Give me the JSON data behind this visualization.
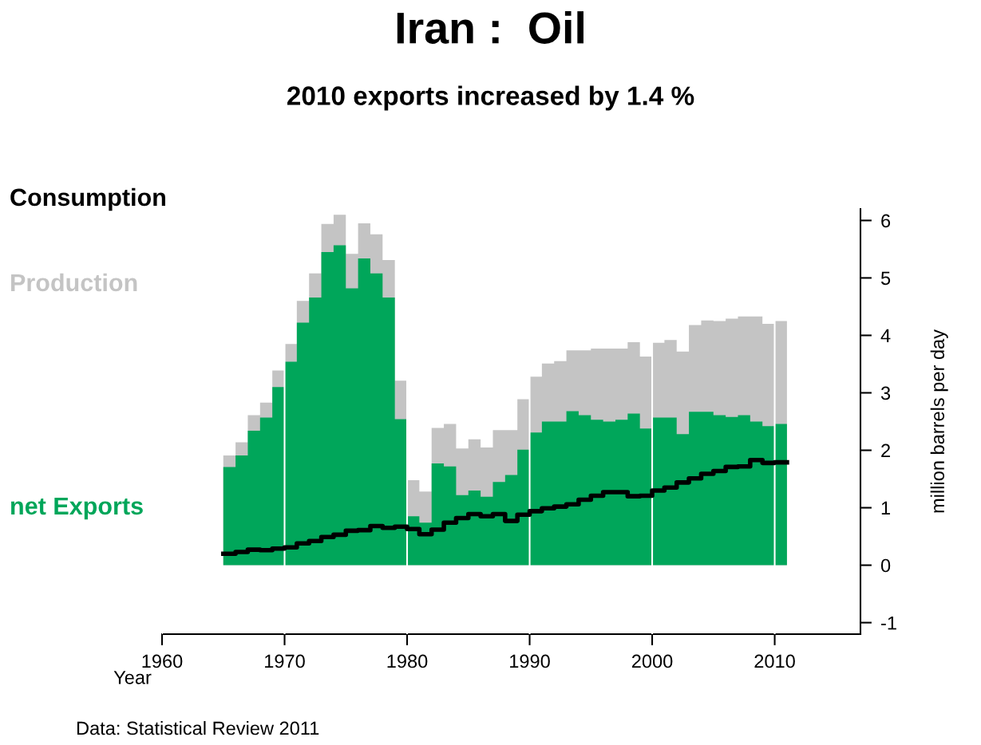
{
  "chart_data": {
    "type": "area",
    "title": "Iran :  Oil",
    "subtitle": "2010 exports increased by 1.4 %",
    "xlabel": "Year",
    "ylabel": "million barrels per day",
    "annotations": [
      "Data: Statistical Review 2011"
    ],
    "x": [
      1965,
      1966,
      1967,
      1968,
      1969,
      1970,
      1971,
      1972,
      1973,
      1974,
      1975,
      1976,
      1977,
      1978,
      1979,
      1980,
      1981,
      1982,
      1983,
      1984,
      1985,
      1986,
      1987,
      1988,
      1989,
      1990,
      1991,
      1992,
      1993,
      1994,
      1995,
      1996,
      1997,
      1998,
      1999,
      2000,
      2001,
      2002,
      2003,
      2004,
      2005,
      2006,
      2007,
      2008,
      2009,
      2010,
      2011
    ],
    "series": [
      {
        "name": "Production",
        "color": "#c4c4c4",
        "values": [
          1.91,
          2.14,
          2.61,
          2.83,
          3.39,
          3.85,
          4.6,
          5.08,
          5.94,
          6.1,
          5.42,
          5.95,
          5.76,
          5.31,
          3.21,
          1.48,
          1.28,
          2.39,
          2.46,
          2.03,
          2.19,
          2.05,
          2.35,
          2.35,
          2.89,
          3.28,
          3.51,
          3.55,
          3.74,
          3.74,
          3.77,
          3.77,
          3.77,
          3.88,
          3.63,
          3.87,
          3.92,
          3.72,
          4.18,
          4.26,
          4.25,
          4.29,
          4.33,
          4.33,
          4.2,
          4.25,
          4.25
        ]
      },
      {
        "name": "net Exports",
        "color": "#00a65a",
        "values": [
          1.71,
          1.91,
          2.34,
          2.57,
          3.1,
          3.54,
          4.22,
          4.66,
          5.45,
          5.57,
          4.82,
          5.34,
          5.08,
          4.66,
          2.54,
          0.85,
          0.74,
          1.77,
          1.72,
          1.22,
          1.3,
          1.19,
          1.45,
          1.57,
          2.01,
          2.31,
          2.5,
          2.5,
          2.68,
          2.61,
          2.53,
          2.5,
          2.53,
          2.64,
          2.38,
          2.57,
          2.57,
          2.28,
          2.67,
          2.67,
          2.61,
          2.58,
          2.61,
          2.5,
          2.42,
          2.46,
          2.46
        ]
      },
      {
        "name": "Consumption",
        "type": "step",
        "color": "#000000",
        "values": [
          0.2,
          0.23,
          0.27,
          0.26,
          0.29,
          0.31,
          0.38,
          0.42,
          0.49,
          0.53,
          0.6,
          0.61,
          0.68,
          0.65,
          0.67,
          0.63,
          0.54,
          0.62,
          0.74,
          0.82,
          0.89,
          0.85,
          0.89,
          0.77,
          0.88,
          0.94,
          0.99,
          1.02,
          1.06,
          1.14,
          1.21,
          1.27,
          1.27,
          1.2,
          1.21,
          1.3,
          1.35,
          1.44,
          1.51,
          1.59,
          1.64,
          1.71,
          1.72,
          1.83,
          1.78,
          1.79,
          1.79
        ]
      }
    ],
    "xlim": [
      1960,
      2017
    ],
    "xticks": [
      1960,
      1970,
      1980,
      1990,
      2000,
      2010
    ],
    "ylim": [
      -1.2,
      6.2
    ],
    "yticks": [
      -1,
      0,
      1,
      2,
      3,
      4,
      5,
      6
    ],
    "grid": "x",
    "legend": "left"
  }
}
